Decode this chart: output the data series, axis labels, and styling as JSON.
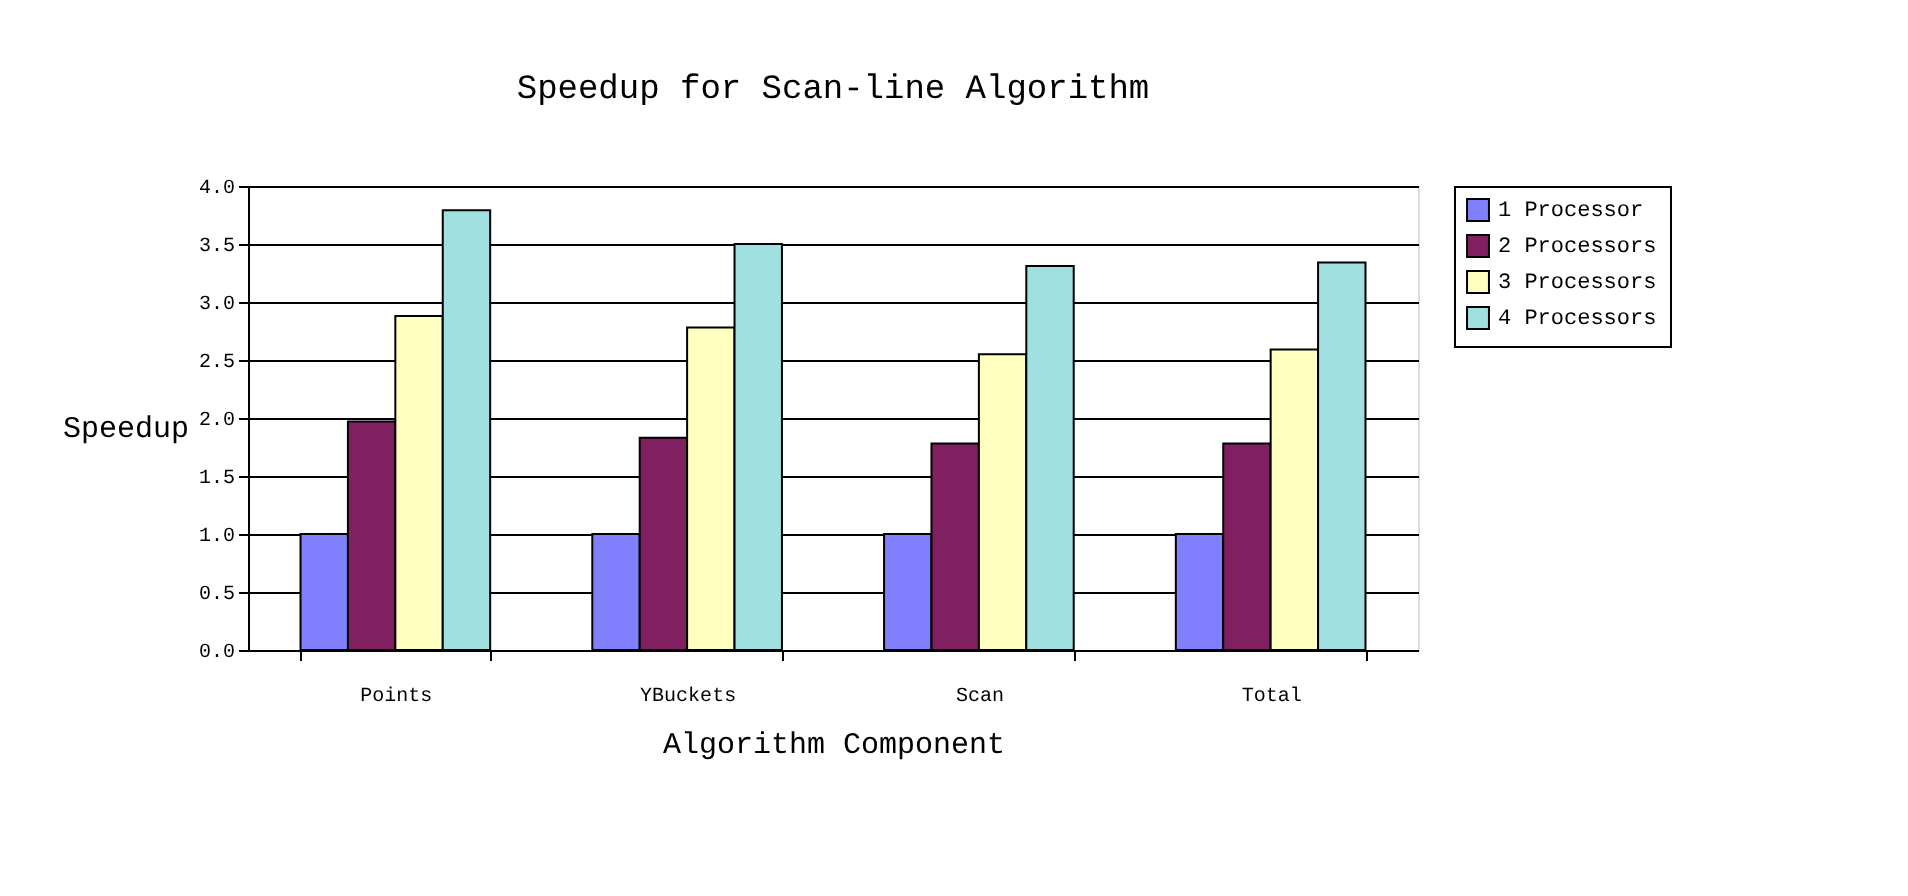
{
  "chart_data": {
    "type": "bar",
    "title": "Speedup for Scan-line Algorithm",
    "xlabel": "Algorithm Component",
    "ylabel": "Speedup",
    "categories": [
      "Points",
      "YBuckets",
      "Scan",
      "Total"
    ],
    "series": [
      {
        "name": "1 Processor",
        "color": "#8080ff",
        "values": [
          1.0,
          1.0,
          1.0,
          1.0
        ]
      },
      {
        "name": "2 Processors",
        "color": "#802060",
        "values": [
          1.97,
          1.83,
          1.78,
          1.78
        ]
      },
      {
        "name": "3 Processors",
        "color": "#ffffc0",
        "values": [
          2.88,
          2.78,
          2.55,
          2.59
        ]
      },
      {
        "name": "4 Processors",
        "color": "#a0e0e0",
        "values": [
          3.79,
          3.5,
          3.31,
          3.34
        ]
      }
    ],
    "ylim": [
      0,
      4
    ],
    "yticks": [
      {
        "value": 0,
        "label": "0.0"
      },
      {
        "value": 0.5,
        "label": "0.5"
      },
      {
        "value": 1,
        "label": "1.0"
      },
      {
        "value": 1.5,
        "label": "1.5"
      },
      {
        "value": 2,
        "label": "2.0"
      },
      {
        "value": 2.5,
        "label": "2.5"
      },
      {
        "value": 3,
        "label": "3.0"
      },
      {
        "value": 3.5,
        "label": "3.5"
      },
      {
        "value": 4,
        "label": "4.0"
      }
    ],
    "grid": "y",
    "legend": "right"
  }
}
